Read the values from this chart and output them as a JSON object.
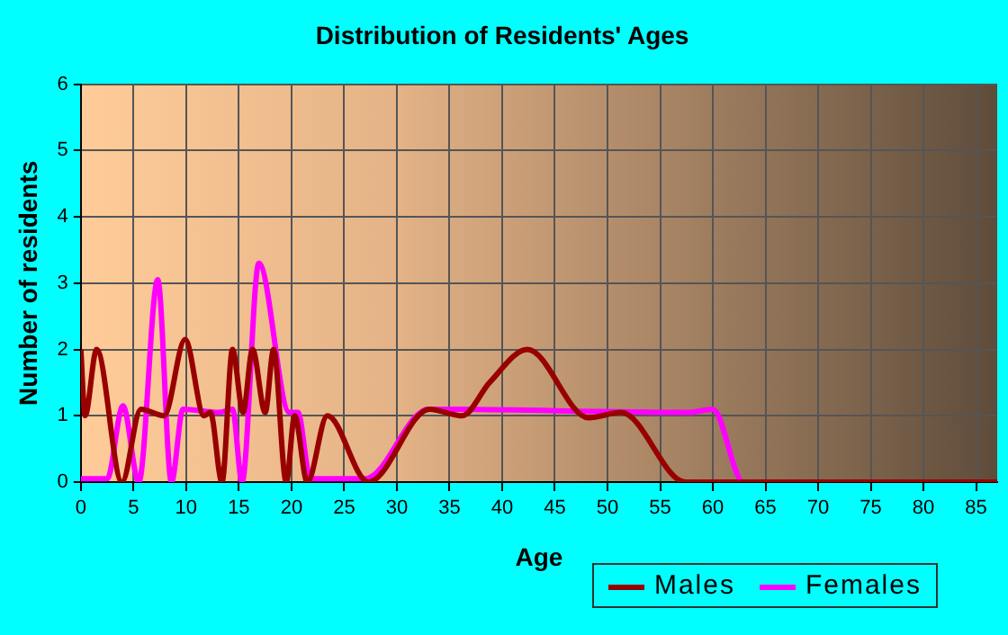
{
  "chart_data": {
    "type": "line",
    "title": "Distribution of Residents' Ages",
    "xlabel": "Age",
    "ylabel": "Number of residents",
    "xlim": [
      0,
      87
    ],
    "xticks": [
      0,
      5,
      10,
      15,
      20,
      25,
      30,
      35,
      40,
      45,
      50,
      55,
      60,
      65,
      70,
      75,
      80,
      85
    ],
    "ylim": [
      0,
      6
    ],
    "yticks": [
      0,
      1,
      2,
      3,
      4,
      5,
      6
    ],
    "grid": true,
    "legend": "bottom right",
    "marker": "none",
    "line_style": "solid",
    "series": [
      {
        "name": "Males",
        "color": "#990000",
        "x": [
          0,
          0.4,
          1.5,
          3.9,
          5.7,
          7.9,
          9.9,
          11.7,
          12.3,
          13.4,
          14.4,
          15.4,
          16.3,
          17.5,
          18.3,
          19.5,
          20.3,
          21.5,
          23.4,
          27.3,
          33.1,
          36.2,
          38.8,
          42.4,
          48.2,
          51.3,
          57.4,
          87
        ],
        "values": [
          2,
          1,
          2,
          0,
          1.1,
          1,
          2.15,
          1,
          1.05,
          0,
          2,
          1.05,
          2,
          1.05,
          2,
          0,
          1,
          0,
          1,
          0,
          1.1,
          1,
          1.5,
          2,
          0.97,
          1.05,
          0,
          0
        ]
      },
      {
        "name": "Females",
        "color": "#ff00ff",
        "x": [
          0,
          2.5,
          4,
          5.5,
          7.3,
          8.6,
          9.7,
          13.1,
          14.4,
          15.3,
          16.9,
          19.8,
          20.6,
          21.8,
          27,
          33,
          57.7,
          60,
          62.9,
          87
        ],
        "values": [
          0.05,
          0.05,
          1.15,
          0,
          3.05,
          0,
          1.1,
          1.05,
          1.1,
          0,
          3.3,
          1.05,
          1.05,
          0.05,
          0.05,
          1.1,
          1.05,
          1.1,
          0,
          0
        ]
      }
    ]
  }
}
